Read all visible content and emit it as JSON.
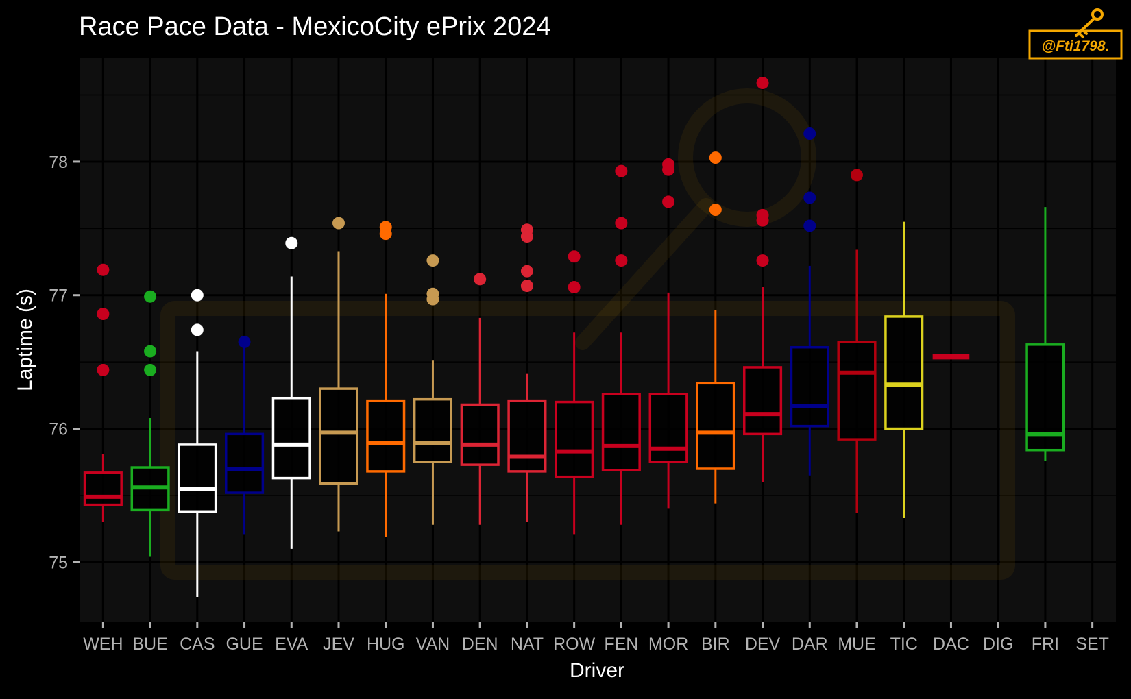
{
  "chart_data": {
    "type": "box",
    "title": "Race Pace Data - MexicoCity ePrix 2024",
    "xlabel": "Driver",
    "ylabel": "Laptime (s)",
    "ylim": [
      74.55,
      78.78
    ],
    "yticks": [
      75,
      76,
      77,
      78
    ],
    "categories": [
      "WEH",
      "BUE",
      "CAS",
      "GUE",
      "EVA",
      "JEV",
      "HUG",
      "VAN",
      "DEN",
      "NAT",
      "ROW",
      "FEN",
      "MOR",
      "BIR",
      "DEV",
      "DAR",
      "MUE",
      "TIC",
      "DAC",
      "DIG",
      "FRI",
      "SET"
    ],
    "boxes": [
      {
        "driver": "WEH",
        "color": "#c8001e",
        "whisker_low": 75.3,
        "q1": 75.43,
        "median": 75.49,
        "q3": 75.67,
        "whisker_high": 75.81,
        "outliers": [
          77.19,
          76.86,
          76.44
        ]
      },
      {
        "driver": "BUE",
        "color": "#1aad20",
        "whisker_low": 75.04,
        "q1": 75.39,
        "median": 75.56,
        "q3": 75.71,
        "whisker_high": 76.08,
        "outliers": [
          76.99,
          76.58,
          76.44
        ]
      },
      {
        "driver": "CAS",
        "color": "#ffffff",
        "whisker_low": 74.74,
        "q1": 75.38,
        "median": 75.55,
        "q3": 75.88,
        "whisker_high": 76.58,
        "outliers": [
          77.0,
          76.74
        ]
      },
      {
        "driver": "GUE",
        "color": "#00008b",
        "whisker_low": 75.21,
        "q1": 75.52,
        "median": 75.7,
        "q3": 75.96,
        "whisker_high": 76.61,
        "outliers": [
          76.65
        ]
      },
      {
        "driver": "EVA",
        "color": "#ffffff",
        "whisker_low": 75.1,
        "q1": 75.63,
        "median": 75.88,
        "q3": 76.23,
        "whisker_high": 77.14,
        "outliers": [
          77.39
        ]
      },
      {
        "driver": "JEV",
        "color": "#c79a52",
        "whisker_low": 75.23,
        "q1": 75.59,
        "median": 75.97,
        "q3": 76.3,
        "whisker_high": 77.33,
        "outliers": [
          77.54
        ]
      },
      {
        "driver": "HUG",
        "color": "#ff6a00",
        "whisker_low": 75.19,
        "q1": 75.68,
        "median": 75.89,
        "q3": 76.21,
        "whisker_high": 77.01,
        "outliers": [
          77.51,
          77.46
        ]
      },
      {
        "driver": "VAN",
        "color": "#c79a52",
        "whisker_low": 75.28,
        "q1": 75.75,
        "median": 75.89,
        "q3": 76.22,
        "whisker_high": 76.51,
        "outliers": [
          77.26,
          77.01,
          76.97
        ]
      },
      {
        "driver": "DEN",
        "color": "#dc2434",
        "whisker_low": 75.28,
        "q1": 75.73,
        "median": 75.88,
        "q3": 76.18,
        "whisker_high": 76.83,
        "outliers": [
          77.12
        ]
      },
      {
        "driver": "NAT",
        "color": "#dc2434",
        "whisker_low": 75.3,
        "q1": 75.68,
        "median": 75.79,
        "q3": 76.21,
        "whisker_high": 76.41,
        "outliers": [
          77.49,
          77.44,
          77.18,
          77.07
        ]
      },
      {
        "driver": "ROW",
        "color": "#c8001e",
        "whisker_low": 75.21,
        "q1": 75.64,
        "median": 75.83,
        "q3": 76.2,
        "whisker_high": 76.72,
        "outliers": [
          77.29,
          77.06
        ]
      },
      {
        "driver": "FEN",
        "color": "#c8001e",
        "whisker_low": 75.28,
        "q1": 75.69,
        "median": 75.87,
        "q3": 76.26,
        "whisker_high": 76.72,
        "outliers": [
          77.93,
          77.54,
          77.26
        ]
      },
      {
        "driver": "MOR",
        "color": "#c8001e",
        "whisker_low": 75.4,
        "q1": 75.75,
        "median": 75.85,
        "q3": 76.26,
        "whisker_high": 77.02,
        "outliers": [
          77.98,
          77.94,
          77.7
        ]
      },
      {
        "driver": "BIR",
        "color": "#ff6a00",
        "whisker_low": 75.44,
        "q1": 75.7,
        "median": 75.97,
        "q3": 76.34,
        "whisker_high": 76.89,
        "outliers": [
          78.03,
          77.64
        ]
      },
      {
        "driver": "DEV",
        "color": "#c8001e",
        "whisker_low": 75.6,
        "q1": 75.96,
        "median": 76.11,
        "q3": 76.46,
        "whisker_high": 77.06,
        "outliers": [
          78.59,
          77.6,
          77.56,
          77.26
        ]
      },
      {
        "driver": "DAR",
        "color": "#00008b",
        "whisker_low": 75.65,
        "q1": 76.02,
        "median": 76.17,
        "q3": 76.61,
        "whisker_high": 77.22,
        "outliers": [
          78.21,
          77.73,
          77.52
        ]
      },
      {
        "driver": "MUE",
        "color": "#b4000f",
        "whisker_low": 75.37,
        "q1": 75.92,
        "median": 76.42,
        "q3": 76.65,
        "whisker_high": 77.34,
        "outliers": [
          77.9
        ]
      },
      {
        "driver": "TIC",
        "color": "#dcd21e",
        "whisker_low": 75.33,
        "q1": 76.0,
        "median": 76.33,
        "q3": 76.84,
        "whisker_high": 77.55,
        "outliers": []
      },
      {
        "driver": "DAC",
        "color": "#c8001e",
        "whisker_low": 76.54,
        "q1": 76.54,
        "median": 76.54,
        "q3": 76.54,
        "whisker_high": 76.54,
        "outliers": []
      },
      {
        "driver": "FRI",
        "color": "#1aad20",
        "whisker_low": 75.76,
        "q1": 75.84,
        "median": 75.96,
        "q3": 76.63,
        "whisker_high": 77.66,
        "outliers": []
      }
    ],
    "grid": true,
    "legend": "none",
    "background": "#0f0f0f",
    "grid_color": "#000000"
  },
  "watermark": {
    "text": "@Fti1798.",
    "color": "#f5a800",
    "icon": "key-icon"
  }
}
